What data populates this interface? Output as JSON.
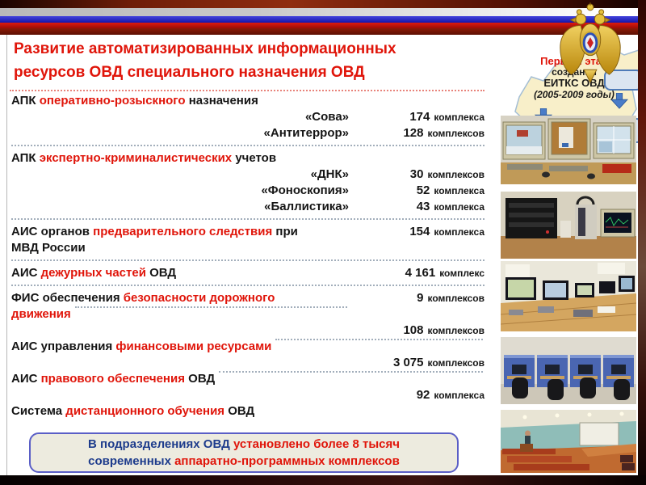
{
  "slide": {
    "title": {
      "line1": "Развитие автоматизированных информационных",
      "line2": "ресурсов ОВД специального назначения ОВД"
    },
    "stage": {
      "line1": "Первый этап",
      "line2": "создания",
      "line3": "ЕИТКС ОВД",
      "line4": "(2005-2009 годы)"
    },
    "rows": [
      {
        "type": "label",
        "segments": [
          {
            "text": "АПК ",
            "color": "black"
          },
          {
            "text": "оперативно-розыскного",
            "color": "red"
          },
          {
            "text": " назначения",
            "color": "black"
          }
        ]
      },
      {
        "type": "quoted",
        "name": "«Сова»",
        "num": "174",
        "unit": "комплекса"
      },
      {
        "type": "quoted",
        "name": "«Антитеррор»",
        "num": "128",
        "unit": "комплексов"
      },
      {
        "type": "sep"
      },
      {
        "type": "label",
        "segments": [
          {
            "text": "АПК ",
            "color": "black"
          },
          {
            "text": "экспертно-криминалистических",
            "color": "red"
          },
          {
            "text": " учетов",
            "color": "black"
          }
        ]
      },
      {
        "type": "quoted",
        "name": "«ДНК»",
        "num": "30",
        "unit": "комплексов"
      },
      {
        "type": "quoted",
        "name": "«Фоноскопия»",
        "num": "52",
        "unit": "комплекса"
      },
      {
        "type": "quoted",
        "name": "«Баллистика»",
        "num": "43",
        "unit": "комплекса"
      },
      {
        "type": "sep"
      },
      {
        "type": "label",
        "segments": [
          {
            "text": "АИС органов ",
            "color": "black"
          },
          {
            "text": "предварительного следствия",
            "color": "red"
          },
          {
            "text": " при",
            "color": "black"
          }
        ],
        "line2": [
          {
            "text": "МВД России",
            "color": "black"
          }
        ],
        "num": "154",
        "unit": "комплекса"
      },
      {
        "type": "sep"
      },
      {
        "type": "label",
        "segments": [
          {
            "text": "АИС ",
            "color": "black"
          },
          {
            "text": "дежурных частей",
            "color": "red"
          },
          {
            "text": " ОВД",
            "color": "black"
          }
        ],
        "num": "4 161",
        "unit": "комплекс"
      },
      {
        "type": "sep"
      },
      {
        "type": "label",
        "segments": [
          {
            "text": "ФИС обеспечения ",
            "color": "black"
          },
          {
            "text": "безопасности дорожного",
            "color": "red"
          }
        ],
        "line2": [
          {
            "text": "движения",
            "color": "red"
          }
        ],
        "line2_dashes": true,
        "num": "9",
        "unit": "комплексов"
      },
      {
        "type": "value",
        "num": "108",
        "unit": "комплексов"
      },
      {
        "type": "label",
        "segments": [
          {
            "text": "АИС управления ",
            "color": "black"
          },
          {
            "text": "финансовыми ресурсами",
            "color": "red"
          }
        ],
        "dashes": true
      },
      {
        "type": "value",
        "num": "3 075",
        "unit": "комплексов"
      },
      {
        "type": "label",
        "segments": [
          {
            "text": "АИС ",
            "color": "black"
          },
          {
            "text": "правового обеспечения",
            "color": "red"
          },
          {
            "text": " ОВД",
            "color": "black"
          }
        ],
        "dashes": true
      },
      {
        "type": "value",
        "num": "92",
        "unit": "комплекса"
      },
      {
        "type": "label",
        "segments": [
          {
            "text": "Система ",
            "color": "black"
          },
          {
            "text": "дистанционного обучения",
            "color": "red"
          },
          {
            "text": " ОВД",
            "color": "black"
          }
        ]
      }
    ],
    "summary": {
      "l1_blue": "В подразделениях ОВД",
      "l1_red": " установлено более 8 тысяч",
      "l2_blue": "современных",
      "l2_red": " аппаратно-программных комплексов"
    },
    "photos": [
      {
        "name": "surveillance-monitors-photo"
      },
      {
        "name": "phonoscopy-equipment-photo"
      },
      {
        "name": "duty-unit-workstations-photo"
      },
      {
        "name": "computer-classroom-photo"
      },
      {
        "name": "lecture-hall-photo"
      }
    ],
    "colors": {
      "title_red": "#e0150a",
      "navy_blue": "#1e3c8c",
      "emblem_gold": "#d8a722",
      "flag_blue": "#2a2ac0",
      "flag_red": "#c01010",
      "box_fill": "#edebdf"
    }
  }
}
